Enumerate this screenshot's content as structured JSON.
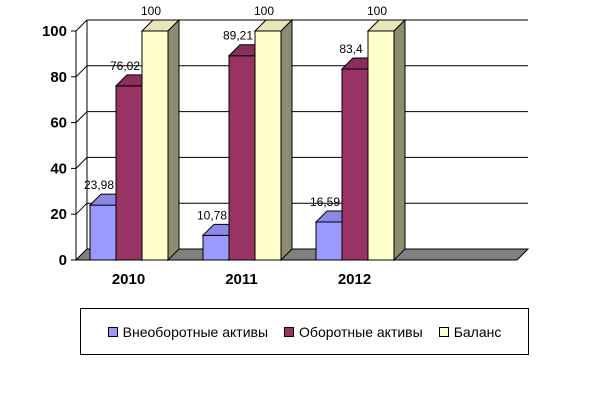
{
  "chart_data": {
    "type": "bar",
    "categories": [
      "2010",
      "2011",
      "2012",
      ""
    ],
    "series": [
      {
        "name": "Внеоборотные активы",
        "values": [
          23.98,
          10.78,
          16.59,
          null
        ],
        "labels": [
          "23,98",
          "10,78",
          "16,59",
          ""
        ],
        "color": "#9999ff"
      },
      {
        "name": "Оборотные активы",
        "values": [
          76.02,
          89.21,
          83.4,
          null
        ],
        "labels": [
          "76,02",
          "89,21",
          "83,4",
          ""
        ],
        "color": "#993366"
      },
      {
        "name": "Баланс",
        "values": [
          100,
          100,
          100,
          null
        ],
        "labels": [
          "100",
          "100",
          "100",
          ""
        ],
        "color": "#ffffcc"
      }
    ],
    "yticks": [
      "0",
      "20",
      "40",
      "60",
      "80",
      "100"
    ],
    "ylim": [
      0,
      100
    ],
    "grid": true,
    "legend_position": "bottom",
    "title": "",
    "xlabel": "",
    "ylabel": ""
  },
  "colors": {
    "floor": "#808080",
    "wall": "#ffffff",
    "gridline": "#000000"
  }
}
